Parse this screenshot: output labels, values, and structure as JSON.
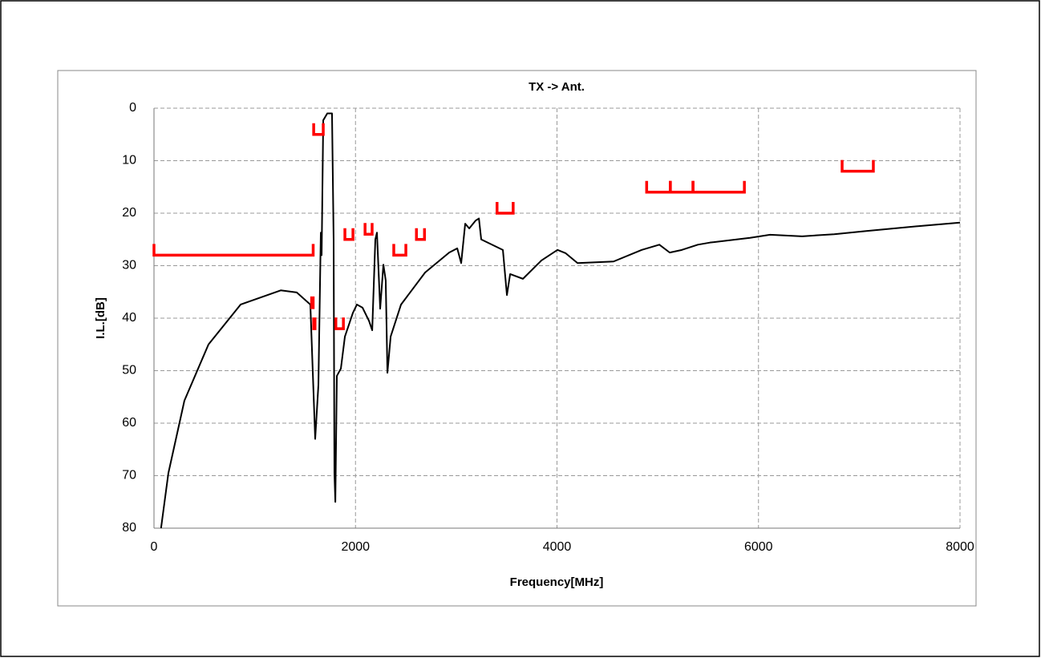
{
  "chart_data": {
    "type": "line",
    "title": "TX -> Ant.",
    "x_label": "Frequency[MHz]",
    "y_label": "I.L.[dB]",
    "xlim": [
      0,
      8000
    ],
    "xticks": [
      0,
      2000,
      4000,
      6000,
      8000
    ],
    "ylim": [
      80,
      0
    ],
    "yticks": [
      0,
      10,
      20,
      30,
      40,
      50,
      60,
      70,
      80
    ],
    "grid": true,
    "series": [
      {
        "color": "#000000",
        "x": [
          70,
          143,
          302,
          541,
          860,
          1258,
          1417,
          1552,
          1600,
          1632,
          1656,
          1664,
          1680,
          1720,
          1767,
          1783,
          1791,
          1800,
          1815,
          1855,
          1895,
          1974,
          2014,
          2070,
          2134,
          2166,
          2197,
          2213,
          2245,
          2277,
          2300,
          2317,
          2349,
          2452,
          2691,
          2930,
          3010,
          3049,
          3089,
          3129,
          3193,
          3225,
          3248,
          3463,
          3503,
          3535,
          3662,
          3846,
          4005,
          4084,
          4204,
          4562,
          4841,
          5016,
          5119,
          5239,
          5398,
          5518,
          5916,
          6115,
          6433,
          6752,
          7070,
          7627,
          8000
        ],
        "values": [
          80,
          69.5,
          55.7,
          45,
          37.4,
          34.7,
          35.1,
          37.4,
          63,
          52.7,
          23.7,
          28,
          2.3,
          1,
          1,
          25,
          69.5,
          75,
          51,
          49.6,
          43.5,
          39,
          37.4,
          38,
          40.5,
          42.3,
          25,
          23.7,
          38.2,
          29.8,
          32.8,
          50.4,
          43.5,
          37.4,
          31.3,
          27.5,
          26.7,
          29.5,
          22,
          22.9,
          21.4,
          21,
          25,
          27,
          35.6,
          31.6,
          32.5,
          29,
          27,
          27.6,
          29.5,
          29.2,
          27,
          26,
          27.5,
          27,
          26,
          25.6,
          24.7,
          24.1,
          24.4,
          24,
          23.4,
          22.4,
          21.8
        ]
      }
    ],
    "limit_color": "#ff0000",
    "limits": [
      {
        "x": [
          0,
          1580
        ],
        "y": 28
      },
      {
        "x": [
          1585,
          1680
        ],
        "y": 5
      },
      {
        "x": [
          1565,
          1580
        ],
        "y": 38
      },
      {
        "x": [
          1585,
          1598
        ],
        "y": 42
      },
      {
        "x": [
          1805,
          1880
        ],
        "y": 42
      },
      {
        "x": [
          1895,
          1975
        ],
        "y": 25
      },
      {
        "x": [
          2095,
          2165
        ],
        "y": 24
      },
      {
        "x": [
          2380,
          2500
        ],
        "y": 28
      },
      {
        "x": [
          2605,
          2685
        ],
        "y": 25
      },
      {
        "x": [
          3405,
          3565
        ],
        "y": 20
      },
      {
        "x": [
          4890,
          5125
        ],
        "y": 16
      },
      {
        "x": [
          5125,
          5350
        ],
        "y": 16
      },
      {
        "x": [
          5350,
          5860
        ],
        "y": 16
      },
      {
        "x": [
          6830,
          7140
        ],
        "y": 12
      }
    ]
  }
}
